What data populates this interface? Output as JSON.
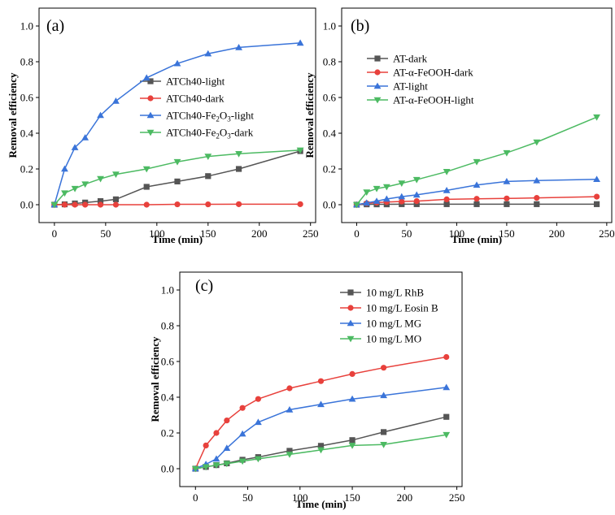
{
  "chart_data": [
    {
      "type": "line",
      "panel_label": "(a)",
      "xlabel": "Time (min)",
      "ylabel": "Removal efficiency",
      "xlim": [
        -15,
        255
      ],
      "ylim": [
        -0.1,
        1.1
      ],
      "xticks": [
        "0",
        "50",
        "100",
        "150",
        "200",
        "250"
      ],
      "yticks": [
        "0.0",
        "0.2",
        "0.4",
        "0.6",
        "0.8",
        "1.0"
      ],
      "legend_position": "middle-right",
      "series": [
        {
          "name": "ATCh40-light",
          "legend_base": "ATCh40-light",
          "legend_parts": [],
          "marker": "square",
          "color": "#555555",
          "x": [
            0,
            10,
            20,
            30,
            45,
            60,
            90,
            120,
            150,
            180,
            240
          ],
          "y": [
            0.0,
            0.002,
            0.007,
            0.012,
            0.02,
            0.03,
            0.1,
            0.13,
            0.16,
            0.2,
            0.3
          ]
        },
        {
          "name": "ATCh40-dark",
          "legend_base": "ATCh40-dark",
          "legend_parts": [],
          "marker": "circle",
          "color": "#e8413c",
          "x": [
            0,
            10,
            20,
            30,
            45,
            60,
            90,
            120,
            150,
            180,
            240
          ],
          "y": [
            0.0,
            0.0,
            0.0,
            0.0,
            0.0,
            0.0,
            0.0,
            0.002,
            0.002,
            0.003,
            0.003
          ]
        },
        {
          "name": "ATCh40-Fe2O3-light",
          "legend_base": "",
          "legend_parts": [
            "ATCh40-Fe",
            "2",
            "O",
            "3",
            "-light"
          ],
          "marker": "triangle-up",
          "color": "#3a74d9",
          "x": [
            0,
            10,
            20,
            30,
            45,
            60,
            90,
            120,
            150,
            180,
            240
          ],
          "y": [
            0.0,
            0.2,
            0.32,
            0.375,
            0.5,
            0.58,
            0.71,
            0.79,
            0.845,
            0.88,
            0.905
          ]
        },
        {
          "name": "ATCh40-Fe2O3-dark",
          "legend_base": "",
          "legend_parts": [
            "ATCh40-Fe",
            "2",
            "O",
            "3",
            "-dark"
          ],
          "marker": "triangle-down",
          "color": "#4cba62",
          "x": [
            0,
            10,
            20,
            30,
            45,
            60,
            90,
            120,
            150,
            180,
            240
          ],
          "y": [
            0.0,
            0.065,
            0.09,
            0.115,
            0.145,
            0.17,
            0.2,
            0.24,
            0.27,
            0.285,
            0.305
          ]
        }
      ]
    },
    {
      "type": "line",
      "panel_label": "(b)",
      "xlabel": "Time (min)",
      "ylabel": "Removal efficiency",
      "xlim": [
        -15,
        255
      ],
      "ylim": [
        -0.1,
        1.1
      ],
      "xticks": [
        "0",
        "50",
        "100",
        "150",
        "200",
        "250"
      ],
      "yticks": [
        "0.0",
        "0.2",
        "0.4",
        "0.6",
        "0.8",
        "1.0"
      ],
      "legend_position": "upper-left",
      "series": [
        {
          "name": "AT-dark",
          "legend_base": "AT-dark",
          "legend_parts": [],
          "marker": "square",
          "color": "#555555",
          "x": [
            0,
            10,
            20,
            30,
            45,
            60,
            90,
            120,
            150,
            180,
            240
          ],
          "y": [
            0.0,
            0.002,
            0.002,
            0.002,
            0.003,
            0.003,
            0.003,
            0.003,
            0.003,
            0.003,
            0.003
          ]
        },
        {
          "name": "AT-α-FeOOH-dark",
          "legend_base": "AT-α-FeOOH-dark",
          "legend_parts": [],
          "marker": "circle",
          "color": "#e8413c",
          "x": [
            0,
            10,
            20,
            30,
            45,
            60,
            90,
            120,
            150,
            180,
            240
          ],
          "y": [
            0.0,
            0.008,
            0.012,
            0.015,
            0.018,
            0.02,
            0.03,
            0.033,
            0.035,
            0.038,
            0.045
          ]
        },
        {
          "name": "AT-light",
          "legend_base": "AT-light",
          "legend_parts": [],
          "marker": "triangle-up",
          "color": "#3a74d9",
          "x": [
            0,
            10,
            20,
            30,
            45,
            60,
            90,
            120,
            150,
            180,
            240
          ],
          "y": [
            0.0,
            0.01,
            0.02,
            0.032,
            0.045,
            0.055,
            0.08,
            0.11,
            0.13,
            0.135,
            0.142
          ]
        },
        {
          "name": "AT-α-FeOOH-light",
          "legend_base": "AT-α-FeOOH-light",
          "legend_parts": [],
          "marker": "triangle-down",
          "color": "#4cba62",
          "x": [
            0,
            10,
            20,
            30,
            45,
            60,
            90,
            120,
            150,
            180,
            240
          ],
          "y": [
            0.0,
            0.07,
            0.09,
            0.1,
            0.12,
            0.14,
            0.185,
            0.24,
            0.29,
            0.35,
            0.49
          ]
        }
      ]
    },
    {
      "type": "line",
      "panel_label": "(c)",
      "xlabel": "Time (min)",
      "ylabel": "Removal efficiency",
      "xlim": [
        -15,
        255
      ],
      "ylim": [
        -0.1,
        1.1
      ],
      "xticks": [
        "0",
        "50",
        "100",
        "150",
        "200",
        "250"
      ],
      "yticks": [
        "0.0",
        "0.2",
        "0.4",
        "0.6",
        "0.8",
        "1.0"
      ],
      "legend_position": "upper-right",
      "series": [
        {
          "name": "10 mg/L RhB",
          "legend_base": "10 mg/L RhB",
          "legend_parts": [],
          "marker": "square",
          "color": "#555555",
          "x": [
            0,
            10,
            20,
            30,
            45,
            60,
            90,
            120,
            150,
            180,
            240
          ],
          "y": [
            0.0,
            0.01,
            0.02,
            0.03,
            0.05,
            0.065,
            0.1,
            0.128,
            0.16,
            0.205,
            0.29
          ]
        },
        {
          "name": "10 mg/L Eosin B",
          "legend_base": "10 mg/L Eosin B",
          "legend_parts": [],
          "marker": "circle",
          "color": "#e8413c",
          "x": [
            0,
            10,
            20,
            30,
            45,
            60,
            90,
            120,
            150,
            180,
            240
          ],
          "y": [
            0.0,
            0.13,
            0.2,
            0.27,
            0.34,
            0.39,
            0.45,
            0.49,
            0.53,
            0.565,
            0.625
          ]
        },
        {
          "name": "10 mg/L MG",
          "legend_base": "10 mg/L MG",
          "legend_parts": [],
          "marker": "triangle-up",
          "color": "#3a74d9",
          "x": [
            0,
            10,
            20,
            30,
            45,
            60,
            90,
            120,
            150,
            180,
            240
          ],
          "y": [
            0.0,
            0.025,
            0.055,
            0.115,
            0.195,
            0.26,
            0.33,
            0.36,
            0.39,
            0.41,
            0.455
          ]
        },
        {
          "name": "10 mg/L MO",
          "legend_base": "10 mg/L MO",
          "legend_parts": [],
          "marker": "triangle-down",
          "color": "#4cba62",
          "x": [
            0,
            10,
            20,
            30,
            45,
            60,
            90,
            120,
            150,
            180,
            240
          ],
          "y": [
            0.0,
            0.01,
            0.02,
            0.028,
            0.042,
            0.055,
            0.08,
            0.105,
            0.13,
            0.135,
            0.19
          ]
        }
      ]
    }
  ]
}
